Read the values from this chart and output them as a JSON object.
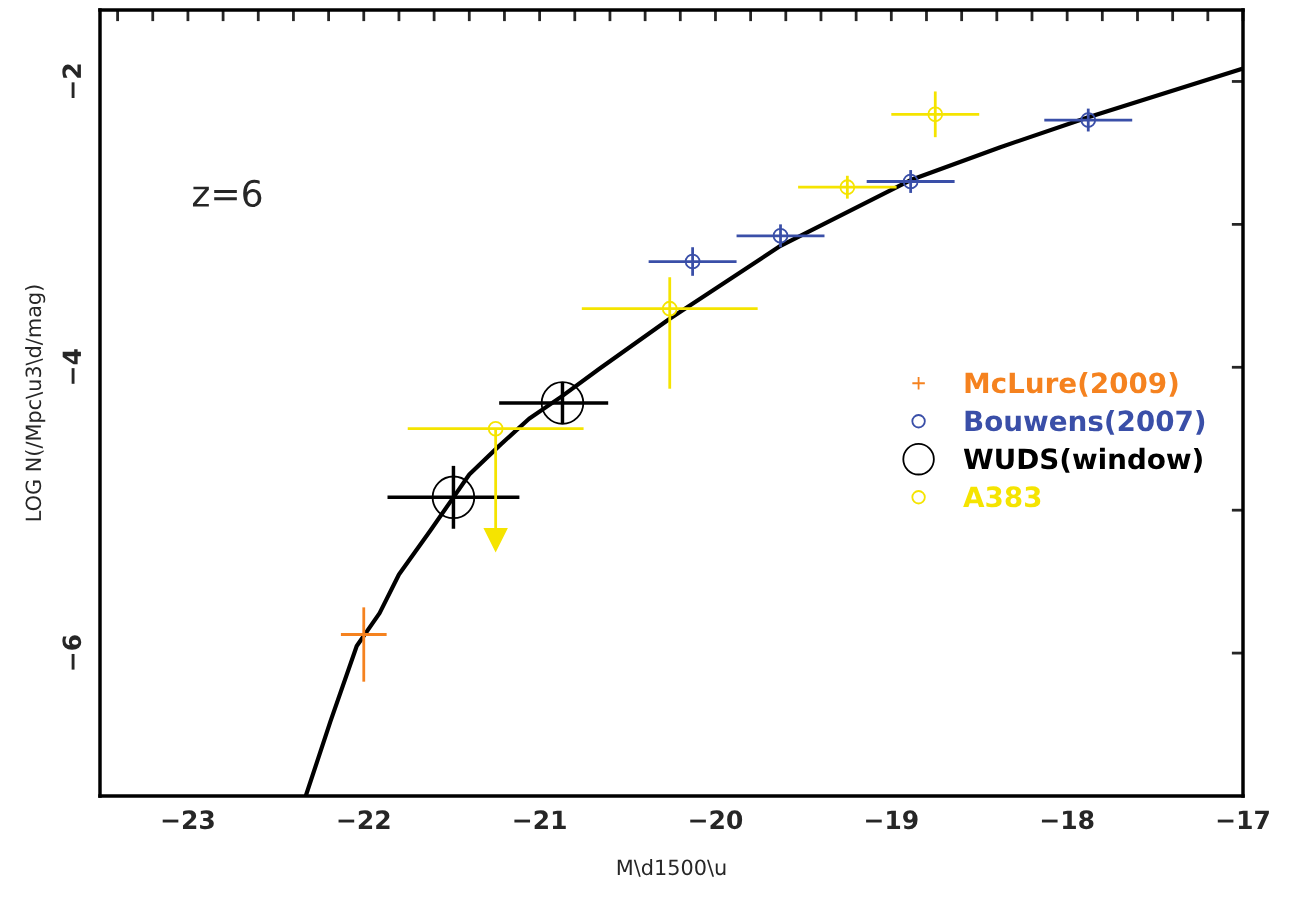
{
  "chart_data": {
    "type": "scatter",
    "xlabel": "M\\d1500\\u",
    "ylabel": "LOG N(/Mpc\\u3\\d/mag)",
    "annotations": [
      "z=6"
    ],
    "xlim": [
      -23.5,
      -17
    ],
    "ylim": [
      -7,
      -1.5
    ],
    "xticks": [
      -23,
      {
        "value": -22.8,
        "label": null
      },
      {
        "value": -22.6,
        "label": null
      },
      {
        "value": -22.4,
        "label": null
      },
      {
        "value": -22.2,
        "label": null
      },
      -22,
      {
        "value": -21.8,
        "label": null
      },
      {
        "value": -21.6,
        "label": null
      },
      {
        "value": -21.4,
        "label": null
      },
      {
        "value": -21.2,
        "label": null
      },
      -21,
      {
        "value": -20.8,
        "label": null
      },
      {
        "value": -20.6,
        "label": null
      },
      {
        "value": -20.4,
        "label": null
      },
      {
        "value": -20.2,
        "label": null
      },
      -20,
      {
        "value": -19.8,
        "label": null
      },
      {
        "value": -19.6,
        "label": null
      },
      {
        "value": -19.4,
        "label": null
      },
      {
        "value": -19.2,
        "label": null
      },
      -19,
      {
        "value": -18.8,
        "label": null
      },
      {
        "value": -18.6,
        "label": null
      },
      {
        "value": -18.4,
        "label": null
      },
      {
        "value": -18.2,
        "label": null
      },
      -18,
      {
        "value": -17.8,
        "label": null
      },
      {
        "value": -17.6,
        "label": null
      },
      {
        "value": -17.4,
        "label": null
      },
      {
        "value": -17.2,
        "label": null
      },
      -17,
      {
        "value": -23.2,
        "label": null
      },
      {
        "value": -23.4,
        "label": null
      }
    ],
    "yticks": [
      -6,
      {
        "value": -5,
        "label": null
      },
      -4,
      {
        "value": -3,
        "label": null
      },
      -2
    ],
    "grid": false,
    "legend": "right",
    "series": [
      {
        "type": "line",
        "color": "#000000",
        "marker": "none",
        "line_style": "solid",
        "x": [
          -22.33,
          -22.19,
          -22.04,
          -21.91,
          -21.8,
          -21.62,
          -21.49,
          -21.4,
          -21.23,
          -21.06,
          -20.87,
          -20.66,
          -20.26,
          -19.63,
          -18.89,
          -18.38,
          -17.88,
          -17.0
        ],
        "values": [
          -7.0,
          -6.48,
          -5.95,
          -5.72,
          -5.45,
          -5.14,
          -4.91,
          -4.75,
          -4.55,
          -4.36,
          -4.2,
          -4.01,
          -3.66,
          -3.15,
          -2.69,
          -2.46,
          -2.25,
          -1.91
        ]
      },
      {
        "name": "McLure(2009)",
        "color": "#f5821f",
        "marker": "cross",
        "x": [
          -22.0
        ],
        "values": [
          -5.87
        ],
        "errors": [
          [
            -6.2,
            -5.68
          ]
        ],
        "xerrors": [
          0.13
        ]
      },
      {
        "name": "Bouwens(2007)",
        "color": "#3a4fa8",
        "marker": "circle",
        "x": [
          -20.13,
          -19.63,
          -18.89,
          -17.88
        ],
        "values": [
          -3.26,
          -3.08,
          -2.7,
          -2.27
        ],
        "errors": [
          0.1,
          0.08,
          0.08,
          0.08
        ],
        "xerrors": [
          0.25,
          0.25,
          0.25,
          0.25
        ]
      },
      {
        "name": "WUDS(window)",
        "color": "#000000",
        "marker": "circle",
        "x": [
          -21.49,
          -20.87
        ],
        "values": [
          -4.91,
          -4.25
        ],
        "errors": [
          0.22,
          0.14
        ],
        "xerrors": [
          0.375,
          [
            -21.23,
            -20.61
          ]
        ]
      },
      {
        "name": "A383",
        "color": "#f5e400",
        "marker": "circle",
        "x": [
          -21.25,
          -20.26,
          -19.25,
          -18.75
        ],
        "values": [
          -4.43,
          -3.59,
          -2.74,
          -2.23
        ],
        "errors": [
          [
            -5.13,
            -4.43
          ],
          [
            -4.15,
            -3.37
          ],
          0.08,
          0.16
        ],
        "xerrors": [
          0.5,
          0.5,
          0.28,
          0.25
        ]
      }
    ]
  }
}
